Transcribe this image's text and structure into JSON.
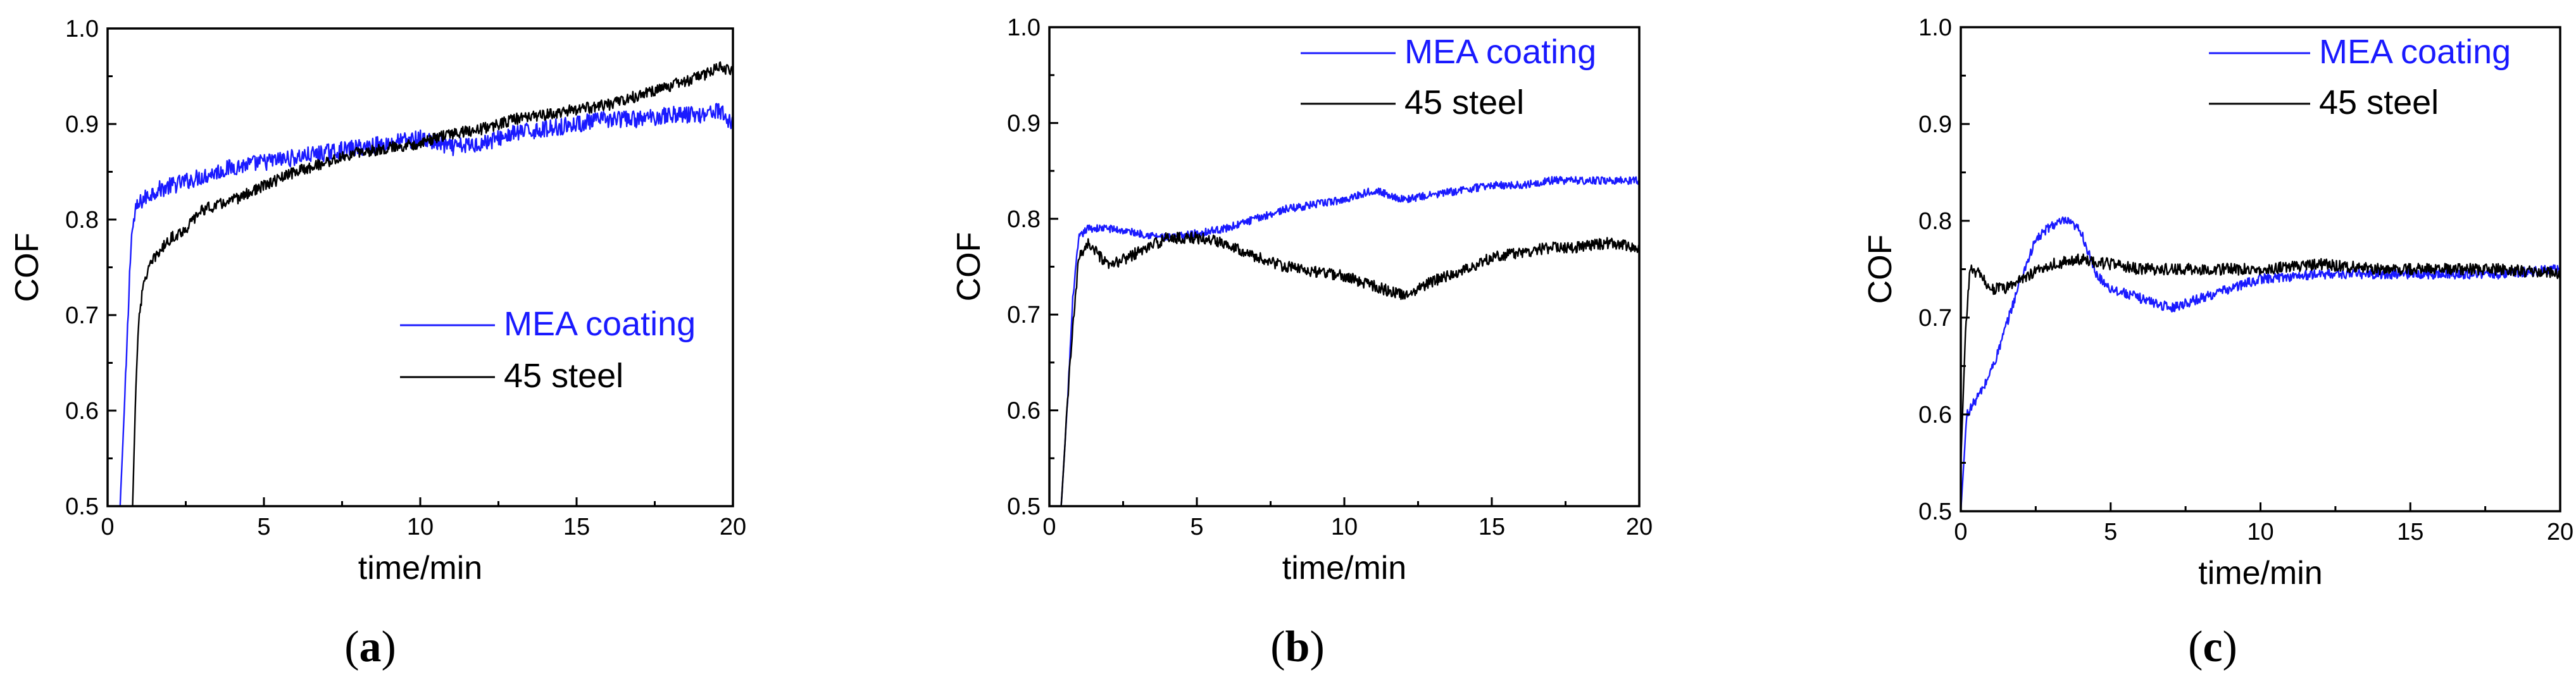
{
  "colors": {
    "MEA coating": "#1a1aff",
    "45 steel": "#000000"
  },
  "chart_data": [
    {
      "type": "line",
      "panel_label": "a",
      "xlabel": "time/min",
      "ylabel": "COF",
      "xlim": [
        0,
        20
      ],
      "ylim": [
        0.5,
        1.0
      ],
      "xticks": [
        0,
        5,
        10,
        15,
        20
      ],
      "yticks": [
        0.5,
        0.6,
        0.7,
        0.8,
        0.9,
        1.0
      ],
      "xtick_labels": [
        "0",
        "5",
        "10",
        "15",
        "20"
      ],
      "ytick_labels": [
        "0.5",
        "0.6",
        "0.7",
        "0.8",
        "0.9",
        "1.0"
      ],
      "legend": [
        "MEA coating",
        "45 steel"
      ],
      "legend_position": "lower-right",
      "series": [
        {
          "name": "MEA coating",
          "noise": 0.009,
          "x": [
            0.4,
            0.6,
            0.75,
            0.9,
            1.1,
            1.5,
            2,
            3,
            4,
            5,
            6,
            7,
            8,
            9,
            10,
            11,
            12,
            13,
            14,
            15,
            16,
            17,
            18,
            19,
            19.5,
            20
          ],
          "y": [
            0.5,
            0.65,
            0.78,
            0.81,
            0.82,
            0.83,
            0.835,
            0.845,
            0.855,
            0.86,
            0.865,
            0.87,
            0.875,
            0.88,
            0.885,
            0.875,
            0.88,
            0.89,
            0.895,
            0.9,
            0.905,
            0.905,
            0.91,
            0.91,
            0.915,
            0.9
          ]
        },
        {
          "name": "45 steel",
          "noise": 0.006,
          "x": [
            0.8,
            0.9,
            1.0,
            1.2,
            1.5,
            2,
            2.5,
            3,
            4,
            5,
            6,
            7,
            8,
            9,
            10,
            11,
            12,
            13,
            14,
            15,
            16,
            17,
            18,
            19,
            19.5,
            20
          ],
          "y": [
            0.5,
            0.62,
            0.7,
            0.74,
            0.76,
            0.78,
            0.79,
            0.81,
            0.82,
            0.835,
            0.85,
            0.86,
            0.87,
            0.875,
            0.88,
            0.89,
            0.895,
            0.905,
            0.91,
            0.915,
            0.92,
            0.93,
            0.94,
            0.95,
            0.96,
            0.955
          ]
        }
      ]
    },
    {
      "type": "line",
      "panel_label": "b",
      "xlabel": "time/min",
      "ylabel": "COF",
      "xlim": [
        0,
        20
      ],
      "ylim": [
        0.5,
        1.0
      ],
      "xticks": [
        0,
        5,
        10,
        15,
        20
      ],
      "yticks": [
        0.5,
        0.6,
        0.7,
        0.8,
        0.9,
        1.0
      ],
      "xtick_labels": [
        "0",
        "5",
        "10",
        "15",
        "20"
      ],
      "ytick_labels": [
        "0.5",
        "0.6",
        "0.7",
        "0.8",
        "0.9",
        "1.0"
      ],
      "legend": [
        "MEA coating",
        "45 steel"
      ],
      "legend_position": "upper-right",
      "series": [
        {
          "name": "MEA coating",
          "noise": 0.004,
          "x": [
            0.4,
            0.6,
            0.8,
            1.0,
            1.3,
            2,
            3,
            4,
            5,
            6,
            7,
            8,
            9,
            10,
            11,
            12,
            13,
            14,
            15,
            16,
            17,
            18,
            19,
            20
          ],
          "y": [
            0.5,
            0.6,
            0.72,
            0.78,
            0.79,
            0.79,
            0.785,
            0.78,
            0.785,
            0.79,
            0.8,
            0.81,
            0.815,
            0.82,
            0.83,
            0.82,
            0.825,
            0.83,
            0.835,
            0.835,
            0.84,
            0.84,
            0.84,
            0.84
          ]
        },
        {
          "name": "45 steel",
          "noise": 0.006,
          "x": [
            0.4,
            0.7,
            1.0,
            1.3,
            2,
            3,
            4,
            5,
            6,
            7,
            8,
            9,
            10,
            11,
            12,
            13,
            14,
            15,
            16,
            17,
            18,
            19,
            20
          ],
          "y": [
            0.5,
            0.65,
            0.76,
            0.775,
            0.75,
            0.765,
            0.78,
            0.78,
            0.775,
            0.76,
            0.75,
            0.745,
            0.74,
            0.73,
            0.72,
            0.735,
            0.745,
            0.76,
            0.765,
            0.77,
            0.77,
            0.775,
            0.77
          ]
        }
      ]
    },
    {
      "type": "line",
      "panel_label": "c",
      "xlabel": "time/min",
      "ylabel": "COF",
      "xlim": [
        0,
        20
      ],
      "ylim": [
        0.5,
        1.0
      ],
      "xticks": [
        0,
        5,
        10,
        15,
        20
      ],
      "yticks": [
        0.5,
        0.6,
        0.7,
        0.8,
        0.9,
        1.0
      ],
      "xtick_labels": [
        "0",
        "5",
        "10",
        "15",
        "20"
      ],
      "ytick_labels": [
        "0.5",
        "0.6",
        "0.7",
        "0.8",
        "0.9",
        "1.0"
      ],
      "legend": [
        "MEA coating",
        "45 steel"
      ],
      "legend_position": "upper-right",
      "series": [
        {
          "name": "MEA coating",
          "noise": 0.005,
          "x": [
            0.0,
            0.2,
            0.4,
            0.8,
            1.2,
            2,
            2.5,
            3,
            3.5,
            4,
            4.5,
            5,
            6,
            7,
            8,
            9,
            10,
            12,
            14,
            16,
            18,
            20
          ],
          "y": [
            0.5,
            0.6,
            0.61,
            0.63,
            0.66,
            0.74,
            0.78,
            0.795,
            0.8,
            0.79,
            0.745,
            0.73,
            0.72,
            0.71,
            0.72,
            0.73,
            0.74,
            0.745,
            0.745,
            0.745,
            0.745,
            0.75
          ]
        },
        {
          "name": "45 steel",
          "noise": 0.006,
          "x": [
            0.0,
            0.15,
            0.3,
            0.6,
            1,
            1.5,
            2,
            3,
            4,
            5,
            6,
            8,
            10,
            12,
            14,
            16,
            18,
            20
          ],
          "y": [
            0.55,
            0.68,
            0.75,
            0.745,
            0.73,
            0.73,
            0.74,
            0.755,
            0.76,
            0.755,
            0.75,
            0.75,
            0.75,
            0.755,
            0.75,
            0.75,
            0.75,
            0.745
          ]
        }
      ]
    }
  ]
}
